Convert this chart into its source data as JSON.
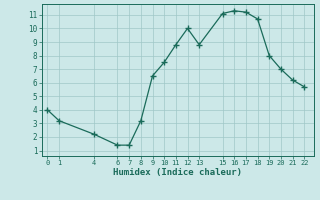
{
  "x": [
    0,
    1,
    4,
    6,
    7,
    8,
    9,
    10,
    11,
    12,
    13,
    15,
    16,
    17,
    18,
    19,
    20,
    21,
    22
  ],
  "y": [
    4.0,
    3.2,
    2.2,
    1.4,
    1.4,
    3.2,
    6.5,
    7.5,
    8.8,
    10.0,
    8.8,
    11.1,
    11.3,
    11.2,
    10.7,
    8.0,
    7.0,
    6.2,
    5.7
  ],
  "line_color": "#1a6b5a",
  "marker_color": "#1a6b5a",
  "bg_color": "#cce8e8",
  "grid_color": "#a0c8c8",
  "xlabel": "Humidex (Indice chaleur)",
  "xlabel_color": "#1a6b5a",
  "tick_color": "#1a6b5a",
  "xticks": [
    0,
    1,
    4,
    6,
    7,
    8,
    9,
    10,
    11,
    12,
    13,
    15,
    16,
    17,
    18,
    19,
    20,
    21,
    22
  ],
  "yticks": [
    1,
    2,
    3,
    4,
    5,
    6,
    7,
    8,
    9,
    10,
    11
  ],
  "xlim": [
    -0.5,
    22.8
  ],
  "ylim": [
    0.6,
    11.8
  ]
}
